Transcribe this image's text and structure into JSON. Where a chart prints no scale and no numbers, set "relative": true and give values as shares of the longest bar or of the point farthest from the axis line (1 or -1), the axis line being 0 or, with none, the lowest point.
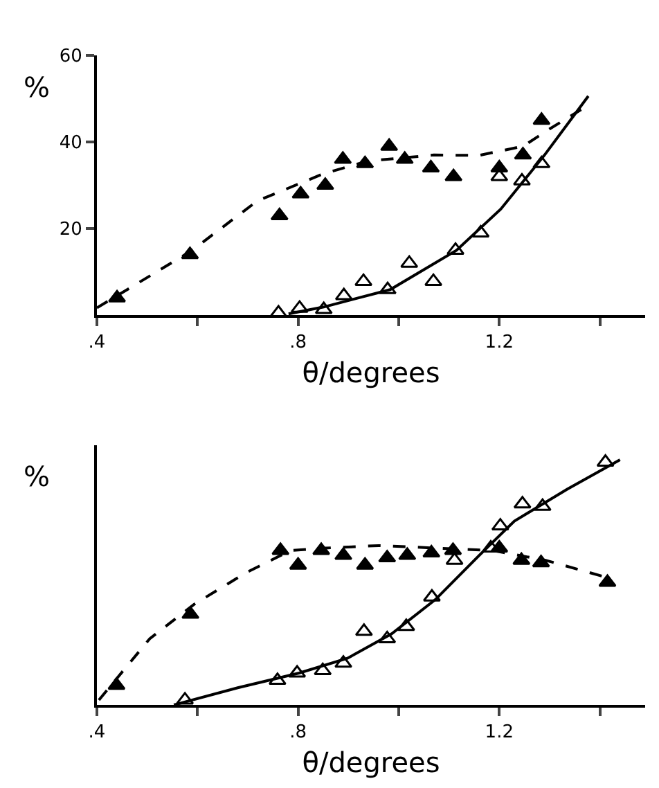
{
  "chart_data": [
    {
      "type": "scatter",
      "ylabel": "%",
      "xlabel": "θ/degrees",
      "xlim": [
        0.4,
        1.49
      ],
      "ylim": [
        0,
        60
      ],
      "xticks": [
        {
          "value": 0.4,
          "label": ".4"
        },
        {
          "value": 0.6,
          "label": null
        },
        {
          "value": 0.8,
          "label": ".8"
        },
        {
          "value": 1.0,
          "label": null
        },
        {
          "value": 1.2,
          "label": "1.2"
        },
        {
          "value": 1.4,
          "label": null
        }
      ],
      "yticks": [
        20,
        40,
        60
      ],
      "series": [
        {
          "marker": "triangle",
          "color": "#000000",
          "x": [
            0.44,
            0.585,
            0.763,
            0.805,
            0.854,
            0.889,
            0.933,
            0.981,
            1.012,
            1.064,
            1.109,
            1.2,
            1.247,
            1.284
          ],
          "values": [
            4,
            14,
            23,
            28,
            30,
            36,
            35,
            39,
            36,
            34,
            32,
            34,
            37,
            45
          ]
        },
        {
          "marker": "triangle-open",
          "color": "#000000",
          "x": [
            0.761,
            0.803,
            0.851,
            0.891,
            0.93,
            0.978,
            1.021,
            1.069,
            1.113,
            1.163,
            1.2,
            1.245,
            1.284
          ],
          "values": [
            0.5,
            1.6,
            1.3,
            4.5,
            7.8,
            5.9,
            12,
            7.8,
            15,
            19,
            32,
            31,
            35
          ]
        },
        {
          "type": "line",
          "line_style": "dashed",
          "color": "#000000",
          "x": [
            0.4,
            0.587,
            0.719,
            0.851,
            0.939,
            1.07,
            1.159,
            1.247,
            1.3,
            1.37
          ],
          "values": [
            1.7,
            14.8,
            26.4,
            32.7,
            35.6,
            37,
            36.9,
            39,
            43,
            48
          ]
        },
        {
          "type": "line",
          "line_style": "solid",
          "color": "#000000",
          "x": [
            0.781,
            0.851,
            0.983,
            1.115,
            1.203,
            1.29,
            1.377
          ],
          "values": [
            0.3,
            1.9,
            5.9,
            15,
            24.5,
            37,
            50.6
          ]
        }
      ]
    },
    {
      "type": "scatter",
      "ylabel": "%",
      "xlabel": "θ/degrees",
      "xlim": [
        0.4,
        1.49
      ],
      "relative": true,
      "xticks": [
        {
          "value": 0.4,
          "label": ".4"
        },
        {
          "value": 0.6,
          "label": null
        },
        {
          "value": 0.8,
          "label": ".8"
        },
        {
          "value": 1.0,
          "label": null
        },
        {
          "value": 1.2,
          "label": "1.2"
        },
        {
          "value": 1.4,
          "label": null
        }
      ],
      "series": [
        {
          "marker": "triangle",
          "color": "#000000",
          "x": [
            0.439,
            0.586,
            0.765,
            0.8,
            0.846,
            0.89,
            0.933,
            0.977,
            1.017,
            1.065,
            1.108,
            1.2,
            1.244,
            1.283,
            1.415
          ],
          "values": [
            0.08,
            0.37,
            0.63,
            0.57,
            0.63,
            0.61,
            0.57,
            0.6,
            0.61,
            0.62,
            0.63,
            0.64,
            0.59,
            0.58,
            0.5
          ]
        },
        {
          "marker": "triangle-open",
          "color": "#000000",
          "x": [
            0.575,
            0.759,
            0.798,
            0.849,
            0.89,
            0.931,
            0.977,
            1.015,
            1.066,
            1.111,
            1.183,
            1.202,
            1.246,
            1.286,
            1.411
          ],
          "values": [
            0.02,
            0.1,
            0.13,
            0.14,
            0.17,
            0.3,
            0.27,
            0.32,
            0.44,
            0.59,
            0.64,
            0.73,
            0.82,
            0.81,
            0.99
          ]
        },
        {
          "type": "line",
          "line_style": "dashed",
          "color": "#000000",
          "x": [
            0.404,
            0.505,
            0.593,
            0.697,
            0.785,
            0.855,
            0.96,
            1.073,
            1.187,
            1.292,
            1.414
          ],
          "values": [
            0.02,
            0.27,
            0.41,
            0.54,
            0.63,
            0.64,
            0.65,
            0.64,
            0.63,
            0.59,
            0.52
          ]
        },
        {
          "type": "line",
          "line_style": "solid",
          "color": "#000000",
          "x": [
            0.553,
            0.68,
            0.802,
            0.898,
            0.986,
            1.073,
            1.16,
            1.23,
            1.335,
            1.44
          ],
          "values": [
            0,
            0.07,
            0.13,
            0.19,
            0.29,
            0.43,
            0.61,
            0.75,
            0.88,
            1
          ]
        }
      ]
    }
  ]
}
